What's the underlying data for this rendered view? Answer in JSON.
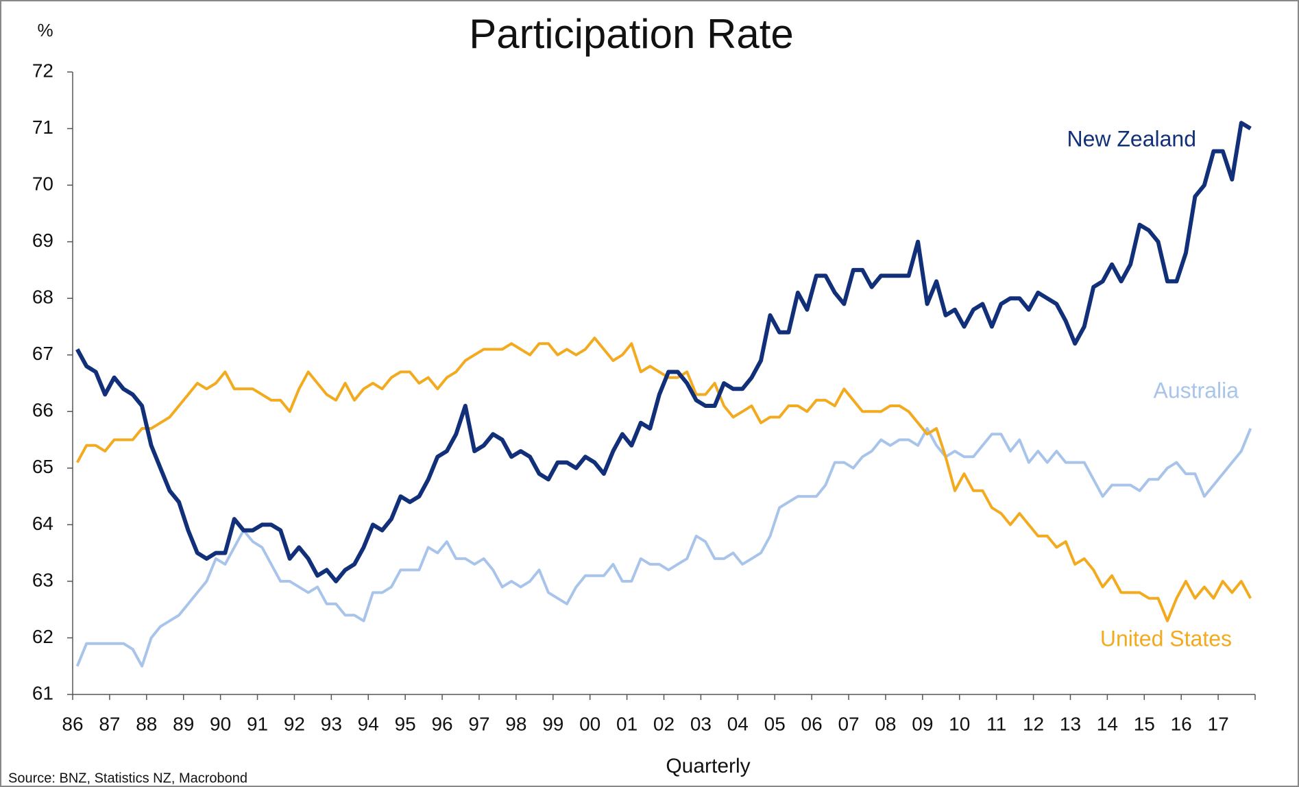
{
  "chart_data": {
    "type": "line",
    "title": "Participation Rate",
    "y_unit": "%",
    "xlabel": "Quarterly",
    "source": "Source: BNZ, Statistics NZ, Macrobond",
    "categories": [
      "86",
      null,
      null,
      null,
      "87",
      null,
      null,
      null,
      "88",
      null,
      null,
      null,
      "89",
      null,
      null,
      null,
      "90",
      null,
      null,
      null,
      "91",
      null,
      null,
      null,
      "92",
      null,
      null,
      null,
      "93",
      null,
      null,
      null,
      "94",
      null,
      null,
      null,
      "95",
      null,
      null,
      null,
      "96",
      null,
      null,
      null,
      "97",
      null,
      null,
      null,
      "98",
      null,
      null,
      null,
      "99",
      null,
      null,
      null,
      "00",
      null,
      null,
      null,
      "01",
      null,
      null,
      null,
      "02",
      null,
      null,
      null,
      "03",
      null,
      null,
      null,
      "04",
      null,
      null,
      null,
      "05",
      null,
      null,
      null,
      "06",
      null,
      null,
      null,
      "07",
      null,
      null,
      null,
      "08",
      null,
      null,
      null,
      "09",
      null,
      null,
      null,
      "10",
      null,
      null,
      null,
      "11",
      null,
      null,
      null,
      "12",
      null,
      null,
      null,
      "13",
      null,
      null,
      null,
      "14",
      null,
      null,
      null,
      "15",
      null,
      null,
      null,
      "16",
      null,
      null,
      null,
      "17",
      null,
      null,
      null
    ],
    "series": [
      {
        "name": "New Zealand",
        "color": "#12307a",
        "values": [
          67.1,
          66.8,
          66.7,
          66.3,
          66.6,
          66.4,
          66.3,
          66.1,
          65.4,
          65.0,
          64.6,
          64.4,
          63.9,
          63.5,
          63.4,
          63.5,
          63.5,
          64.1,
          63.9,
          63.9,
          64.0,
          64.0,
          63.9,
          63.4,
          63.6,
          63.4,
          63.1,
          63.2,
          63.0,
          63.2,
          63.3,
          63.6,
          64.0,
          63.9,
          64.1,
          64.5,
          64.4,
          64.5,
          64.8,
          65.2,
          65.3,
          65.6,
          66.1,
          65.3,
          65.4,
          65.6,
          65.5,
          65.2,
          65.3,
          65.2,
          64.9,
          64.8,
          65.1,
          65.1,
          65.0,
          65.2,
          65.1,
          64.9,
          65.3,
          65.6,
          65.4,
          65.8,
          65.7,
          66.3,
          66.7,
          66.7,
          66.5,
          66.2,
          66.1,
          66.1,
          66.5,
          66.4,
          66.4,
          66.6,
          66.9,
          67.7,
          67.4,
          67.4,
          68.1,
          67.8,
          68.4,
          68.4,
          68.1,
          67.9,
          68.5,
          68.5,
          68.2,
          68.4,
          68.4,
          68.4,
          68.4,
          69.0,
          67.9,
          68.3,
          67.7,
          67.8,
          67.5,
          67.8,
          67.9,
          67.5,
          67.9,
          68.0,
          68.0,
          67.8,
          68.1,
          68.0,
          67.9,
          67.6,
          67.2,
          67.5,
          68.2,
          68.3,
          68.6,
          68.3,
          68.6,
          69.3,
          69.2,
          69.0,
          68.3,
          68.3,
          68.8,
          69.8,
          70.0,
          70.6,
          70.6,
          70.1,
          71.1,
          71.0
        ]
      },
      {
        "name": "Australia",
        "color": "#a9c4ea",
        "values": [
          61.5,
          61.9,
          61.9,
          61.9,
          61.9,
          61.9,
          61.8,
          61.5,
          62.0,
          62.2,
          62.3,
          62.4,
          62.6,
          62.8,
          63.0,
          63.4,
          63.3,
          63.6,
          63.9,
          63.7,
          63.6,
          63.3,
          63.0,
          63.0,
          62.9,
          62.8,
          62.9,
          62.6,
          62.6,
          62.4,
          62.4,
          62.3,
          62.8,
          62.8,
          62.9,
          63.2,
          63.2,
          63.2,
          63.6,
          63.5,
          63.7,
          63.4,
          63.4,
          63.3,
          63.4,
          63.2,
          62.9,
          63.0,
          62.9,
          63.0,
          63.2,
          62.8,
          62.7,
          62.6,
          62.9,
          63.1,
          63.1,
          63.1,
          63.3,
          63.0,
          63.0,
          63.4,
          63.3,
          63.3,
          63.2,
          63.3,
          63.4,
          63.8,
          63.7,
          63.4,
          63.4,
          63.5,
          63.3,
          63.4,
          63.5,
          63.8,
          64.3,
          64.4,
          64.5,
          64.5,
          64.5,
          64.7,
          65.1,
          65.1,
          65.0,
          65.2,
          65.3,
          65.5,
          65.4,
          65.5,
          65.5,
          65.4,
          65.7,
          65.4,
          65.2,
          65.3,
          65.2,
          65.2,
          65.4,
          65.6,
          65.6,
          65.3,
          65.5,
          65.1,
          65.3,
          65.1,
          65.3,
          65.1,
          65.1,
          65.1,
          64.8,
          64.5,
          64.7,
          64.7,
          64.7,
          64.6,
          64.8,
          64.8,
          65.0,
          65.1,
          64.9,
          64.9,
          64.5,
          64.7,
          64.9,
          65.1,
          65.3,
          65.7
        ]
      },
      {
        "name": "United States",
        "color": "#f2aa1e",
        "values": [
          65.1,
          65.4,
          65.4,
          65.3,
          65.5,
          65.5,
          65.5,
          65.7,
          65.7,
          65.8,
          65.9,
          66.1,
          66.3,
          66.5,
          66.4,
          66.5,
          66.7,
          66.4,
          66.4,
          66.4,
          66.3,
          66.2,
          66.2,
          66.0,
          66.4,
          66.7,
          66.5,
          66.3,
          66.2,
          66.5,
          66.2,
          66.4,
          66.5,
          66.4,
          66.6,
          66.7,
          66.7,
          66.5,
          66.6,
          66.4,
          66.6,
          66.7,
          66.9,
          67.0,
          67.1,
          67.1,
          67.1,
          67.2,
          67.1,
          67.0,
          67.2,
          67.2,
          67.0,
          67.1,
          67.0,
          67.1,
          67.3,
          67.1,
          66.9,
          67.0,
          67.2,
          66.7,
          66.8,
          66.7,
          66.6,
          66.6,
          66.7,
          66.3,
          66.3,
          66.5,
          66.1,
          65.9,
          66.0,
          66.1,
          65.8,
          65.9,
          65.9,
          66.1,
          66.1,
          66.0,
          66.2,
          66.2,
          66.1,
          66.4,
          66.2,
          66.0,
          66.0,
          66.0,
          66.1,
          66.1,
          66.0,
          65.8,
          65.6,
          65.7,
          65.2,
          64.6,
          64.9,
          64.6,
          64.6,
          64.3,
          64.2,
          64.0,
          64.2,
          64.0,
          63.8,
          63.8,
          63.6,
          63.7,
          63.3,
          63.4,
          63.2,
          62.9,
          63.1,
          62.8,
          62.8,
          62.8,
          62.7,
          62.7,
          62.3,
          62.7,
          63.0,
          62.7,
          62.9,
          62.7,
          63.0,
          62.8,
          63.0,
          62.7
        ]
      }
    ],
    "ylim": [
      61,
      72
    ],
    "yticks": [
      61,
      62,
      63,
      64,
      65,
      66,
      67,
      68,
      69,
      70,
      71,
      72
    ]
  }
}
